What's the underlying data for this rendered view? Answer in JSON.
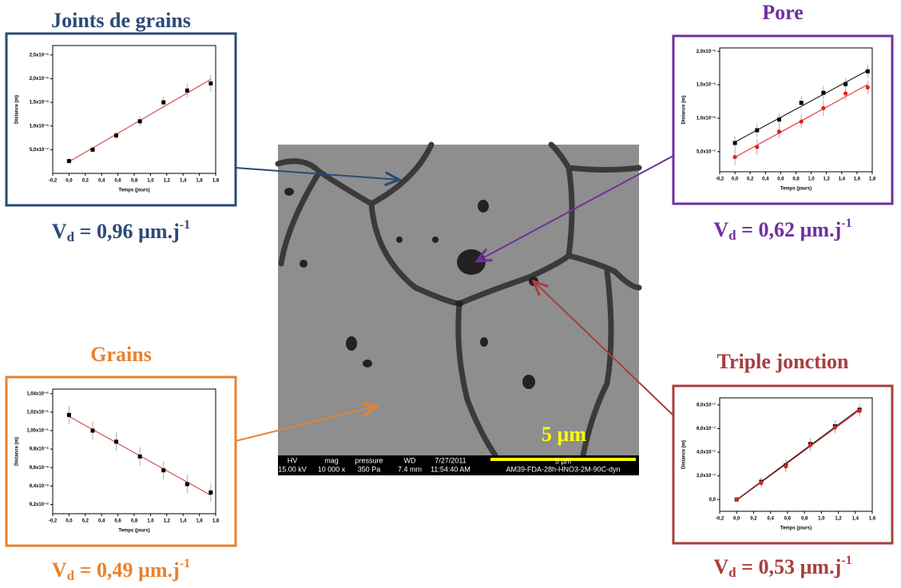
{
  "chart_data": [
    {
      "type": "scatter",
      "title": "Joints de grains",
      "color": "#2b4a78",
      "x_label": "Temps (jours)",
      "y_label": "Distance (m)",
      "annotation": {
        "symbol": "V",
        "subscript": "d",
        "text": " = 0,96 µm.j",
        "superscript": "-1"
      },
      "x": [
        0,
        0.29,
        0.58,
        0.87,
        1.16,
        1.45,
        1.74
      ],
      "series": [
        {
          "color": "#000000",
          "marker": "square",
          "fit_color": "#d03030",
          "values": [
            2.6e-07,
            5e-07,
            8e-07,
            1.1e-06,
            1.5e-06,
            1.75e-06,
            1.9e-06
          ],
          "errors": [
            3e-08,
            5e-08,
            7e-08,
            1e-07,
            1.2e-07,
            1.5e-07,
            1.8e-07
          ]
        }
      ],
      "xlim": [
        -0.2,
        1.8
      ],
      "xticks": [
        {
          "value": -0.2,
          "label": "-0,2"
        },
        {
          "value": 0,
          "label": "0,0"
        },
        {
          "value": 0.2,
          "label": "0,2"
        },
        {
          "value": 0.4,
          "label": "0,4"
        },
        {
          "value": 0.6,
          "label": "0,6"
        },
        {
          "value": 0.8,
          "label": "0,8"
        },
        {
          "value": 1.0,
          "label": "1,0"
        },
        {
          "value": 1.2,
          "label": "1,2"
        },
        {
          "value": 1.4,
          "label": "1,4"
        },
        {
          "value": 1.6,
          "label": "1,6"
        },
        {
          "value": 1.8,
          "label": "1,8"
        }
      ],
      "ylim": [
        0,
        2.7e-06
      ],
      "yticks": [
        {
          "value": 5e-07,
          "label": "5,0x10⁻⁷"
        },
        {
          "value": 1e-06,
          "label": "1,0x10⁻⁶"
        },
        {
          "value": 1.5e-06,
          "label": "1,5x10⁻⁶"
        },
        {
          "value": 2e-06,
          "label": "2,0x10⁻⁶"
        },
        {
          "value": 2.5e-06,
          "label": "2,5x10⁻⁶"
        }
      ]
    },
    {
      "type": "scatter",
      "title": "Pore",
      "color": "#7030a0",
      "x_label": "Temps (jours)",
      "y_label": "Distance (m)",
      "annotation": {
        "symbol": "V",
        "subscript": "d",
        "text": " = 0,62 µm.j",
        "superscript": "-1"
      },
      "x": [
        0,
        0.29,
        0.58,
        0.87,
        1.16,
        1.45,
        1.74
      ],
      "series": [
        {
          "color": "#000000",
          "marker": "square",
          "fit_color": "#000000",
          "values": [
            6.3e-07,
            8.2e-07,
            9.8e-07,
            1.23e-06,
            1.38e-06,
            1.51e-06,
            1.7e-06
          ],
          "errors": [
            1e-07,
            1e-07,
            9e-08,
            1e-07,
            1e-07,
            9e-08,
            1e-07
          ]
        },
        {
          "color": "#e02020",
          "marker": "circle",
          "fit_color": "#e02020",
          "values": [
            4.2e-07,
            5.7e-07,
            8e-07,
            9.5e-07,
            1.15e-06,
            1.37e-06,
            1.46e-06
          ],
          "errors": [
            1.2e-07,
            1.2e-07,
            1e-07,
            1e-07,
            1.2e-07,
            1e-07,
            1e-07
          ]
        }
      ],
      "xlim": [
        -0.2,
        1.8
      ],
      "xticks": [
        {
          "value": -0.2,
          "label": "-0,2"
        },
        {
          "value": 0,
          "label": "0,0"
        },
        {
          "value": 0.2,
          "label": "0,2"
        },
        {
          "value": 0.4,
          "label": "0,4"
        },
        {
          "value": 0.6,
          "label": "0,6"
        },
        {
          "value": 0.8,
          "label": "0,8"
        },
        {
          "value": 1.0,
          "label": "1,0"
        },
        {
          "value": 1.2,
          "label": "1,2"
        },
        {
          "value": 1.4,
          "label": "1,4"
        },
        {
          "value": 1.6,
          "label": "1,6"
        },
        {
          "value": 1.8,
          "label": "1,8"
        }
      ],
      "ylim": [
        2e-07,
        2.05e-06
      ],
      "yticks": [
        {
          "value": 5e-07,
          "label": "5,0x10⁻⁷"
        },
        {
          "value": 1e-06,
          "label": "1,0x10⁻⁶"
        },
        {
          "value": 1.5e-06,
          "label": "1,5x10⁻⁶"
        },
        {
          "value": 2e-06,
          "label": "2,0x10⁻⁶"
        }
      ]
    },
    {
      "type": "scatter",
      "title": "Grains",
      "color": "#e8822e",
      "x_label": "Temps (jours)",
      "y_label": "Distance (m)",
      "annotation": {
        "symbol": "V",
        "subscript": "d",
        "text": " = 0,49 µm.j",
        "superscript": "-1"
      },
      "x": [
        0,
        0.29,
        0.58,
        0.87,
        1.16,
        1.45,
        1.74
      ],
      "series": [
        {
          "color": "#000000",
          "marker": "square",
          "fit_color": "#d03030",
          "values": [
            1.017e-05,
            1e-05,
            9.88e-06,
            9.72e-06,
            9.57e-06,
            9.42e-06,
            9.33e-06
          ],
          "errors": [
            1e-07,
            1e-07,
            1e-07,
            1e-07,
            1e-07,
            1e-07,
            1e-07
          ]
        }
      ],
      "xlim": [
        -0.2,
        1.8
      ],
      "xticks": [
        {
          "value": -0.2,
          "label": "-0,2"
        },
        {
          "value": 0,
          "label": "0,0"
        },
        {
          "value": 0.2,
          "label": "0,2"
        },
        {
          "value": 0.4,
          "label": "0,4"
        },
        {
          "value": 0.6,
          "label": "0,6"
        },
        {
          "value": 0.8,
          "label": "0,8"
        },
        {
          "value": 1.0,
          "label": "1,0"
        },
        {
          "value": 1.2,
          "label": "1,2"
        },
        {
          "value": 1.4,
          "label": "1,4"
        },
        {
          "value": 1.6,
          "label": "1,6"
        },
        {
          "value": 1.8,
          "label": "1,8"
        }
      ],
      "ylim": [
        9.1e-06,
        1.045e-05
      ],
      "yticks": [
        {
          "value": 9.2e-06,
          "label": "9,2x10⁻⁶"
        },
        {
          "value": 9.4e-06,
          "label": "9,4x10⁻⁶"
        },
        {
          "value": 9.6e-06,
          "label": "9,6x10⁻⁶"
        },
        {
          "value": 9.8e-06,
          "label": "9,8x10⁻⁶"
        },
        {
          "value": 1e-05,
          "label": "1,00x10⁻⁵"
        },
        {
          "value": 1.02e-05,
          "label": "1,02x10⁻⁵"
        },
        {
          "value": 1.04e-05,
          "label": "1,04x10⁻⁵"
        }
      ]
    },
    {
      "type": "scatter",
      "title": "Triple jonction",
      "color": "#a83e3e",
      "x_label": "Temps (jours)",
      "y_label": "Distance (m)",
      "annotation": {
        "symbol": "V",
        "subscript": "d",
        "text": " = 0,53 µm.j",
        "superscript": "-1"
      },
      "x": [
        0,
        0.29,
        0.58,
        0.87,
        1.16,
        1.45
      ],
      "series": [
        {
          "color": "#000000",
          "marker": "square",
          "fit_color": "#000000",
          "values": [
            0,
            1.5e-07,
            2.9e-07,
            4.7e-07,
            6.2e-07,
            7.6e-07
          ],
          "errors": [
            1e-08,
            4e-08,
            5e-08,
            5e-08,
            5e-08,
            5e-08
          ]
        },
        {
          "color": "#e02020",
          "marker": "circle",
          "fit_color": "#e02020",
          "values": [
            0,
            1.4e-07,
            2.8e-07,
            4.6e-07,
            6.1e-07,
            7.5e-07
          ],
          "errors": [
            1e-08,
            4e-08,
            5e-08,
            5e-08,
            5e-08,
            5e-08
          ]
        }
      ],
      "xlim": [
        -0.2,
        1.6
      ],
      "xticks": [
        {
          "value": -0.2,
          "label": "-0,2"
        },
        {
          "value": 0,
          "label": "0,0"
        },
        {
          "value": 0.2,
          "label": "0,2"
        },
        {
          "value": 0.4,
          "label": "0,4"
        },
        {
          "value": 0.6,
          "label": "0,6"
        },
        {
          "value": 0.8,
          "label": "0,8"
        },
        {
          "value": 1.0,
          "label": "1,0"
        },
        {
          "value": 1.2,
          "label": "1,2"
        },
        {
          "value": 1.4,
          "label": "1,4"
        },
        {
          "value": 1.6,
          "label": "1,6"
        }
      ],
      "ylim": [
        -1e-07,
        8.6e-07
      ],
      "yticks": [
        {
          "value": 0,
          "label": "0,0"
        },
        {
          "value": 2e-07,
          "label": "2,0x10⁻⁷"
        },
        {
          "value": 4e-07,
          "label": "4,0x10⁻⁷"
        },
        {
          "value": 6e-07,
          "label": "6,0x10⁻⁷"
        },
        {
          "value": 8e-07,
          "label": "8,0x10⁻⁷"
        }
      ]
    }
  ],
  "sem_image": {
    "scale_text": "5 µm",
    "headers": [
      "HV",
      "mag",
      "pressure",
      "WD",
      "7/27/2011"
    ],
    "values": [
      "15.00 kV",
      "10 000 x",
      "350 Pa",
      "7.4 mm",
      "11:54:40 AM"
    ],
    "scale_bar": "5 µm",
    "sample": "AM39-FDA-28h-HNO3-2M-90C-dyn"
  }
}
